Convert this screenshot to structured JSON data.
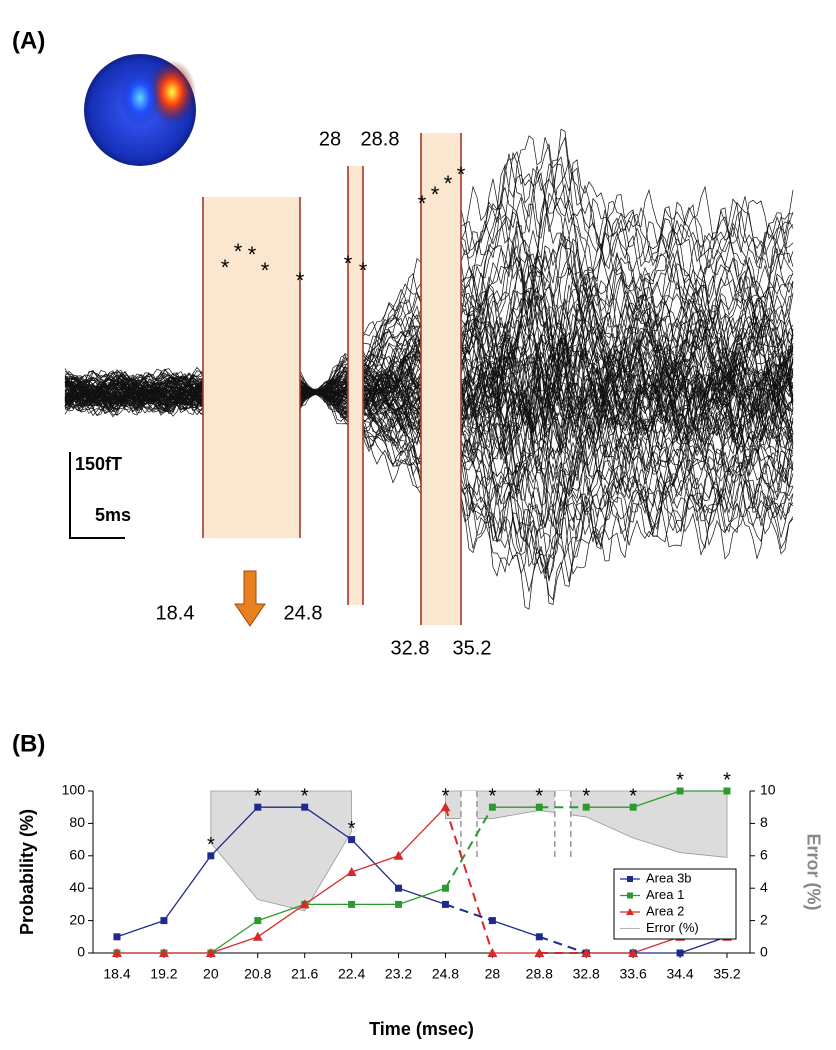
{
  "panel_a": {
    "label": "(A)",
    "scale_amplitude": "150fT",
    "scale_time": "5ms",
    "windows": [
      {
        "start": 18.4,
        "end": 24.8,
        "stars": [
          "*",
          "*",
          "*",
          "*",
          "*"
        ]
      },
      {
        "start": 28,
        "end": 28.8,
        "stars": [
          "*",
          "*"
        ]
      },
      {
        "start": 32.8,
        "end": 35.2,
        "stars": [
          "*",
          "*",
          "*",
          "*"
        ]
      }
    ]
  },
  "chart_data": {
    "type": "line",
    "title": "(B)",
    "x_label": "Time (msec)",
    "y_label": "Probability (%)",
    "y2_label": "Error (%)",
    "categories": [
      "18.4",
      "19.2",
      "20",
      "20.8",
      "21.6",
      "22.4",
      "23.2",
      "24.8",
      "28",
      "28.8",
      "32.8",
      "33.6",
      "34.4",
      "35.2"
    ],
    "series": [
      {
        "name": "Area 3b",
        "color": "#1f2a8c",
        "marker": "square",
        "values": [
          10,
          20,
          60,
          90,
          90,
          70,
          40,
          30,
          20,
          10,
          0,
          0,
          0,
          10
        ]
      },
      {
        "name": "Area 1",
        "color": "#2e9a2e",
        "marker": "square",
        "values": [
          0,
          0,
          0,
          20,
          30,
          30,
          30,
          40,
          90,
          90,
          90,
          90,
          100,
          100
        ]
      },
      {
        "name": "Area 2",
        "color": "#d42a2a",
        "marker": "triangle",
        "values": [
          0,
          0,
          0,
          10,
          30,
          50,
          60,
          90,
          0,
          0,
          0,
          0,
          10,
          10
        ]
      },
      {
        "name": "Error (%)",
        "color": "#9a9a9a",
        "axis": "y2",
        "marker": "area",
        "values": [
          null,
          null,
          6.8,
          3.3,
          2.6,
          7.5,
          null,
          8.3,
          8.3,
          8.8,
          8.4,
          7.1,
          6.2,
          5.9
        ]
      }
    ],
    "annotations": [
      null,
      null,
      "*",
      "*",
      "*",
      "*",
      null,
      "*",
      "*",
      "*",
      "*",
      "*",
      "*",
      "*"
    ],
    "ylim": [
      0,
      100
    ],
    "yticks": [
      0,
      20,
      40,
      60,
      80,
      100
    ],
    "y2lim": [
      0,
      10
    ],
    "y2ticks": [
      0,
      2,
      4,
      6,
      8,
      10
    ],
    "legend": "lower right"
  }
}
